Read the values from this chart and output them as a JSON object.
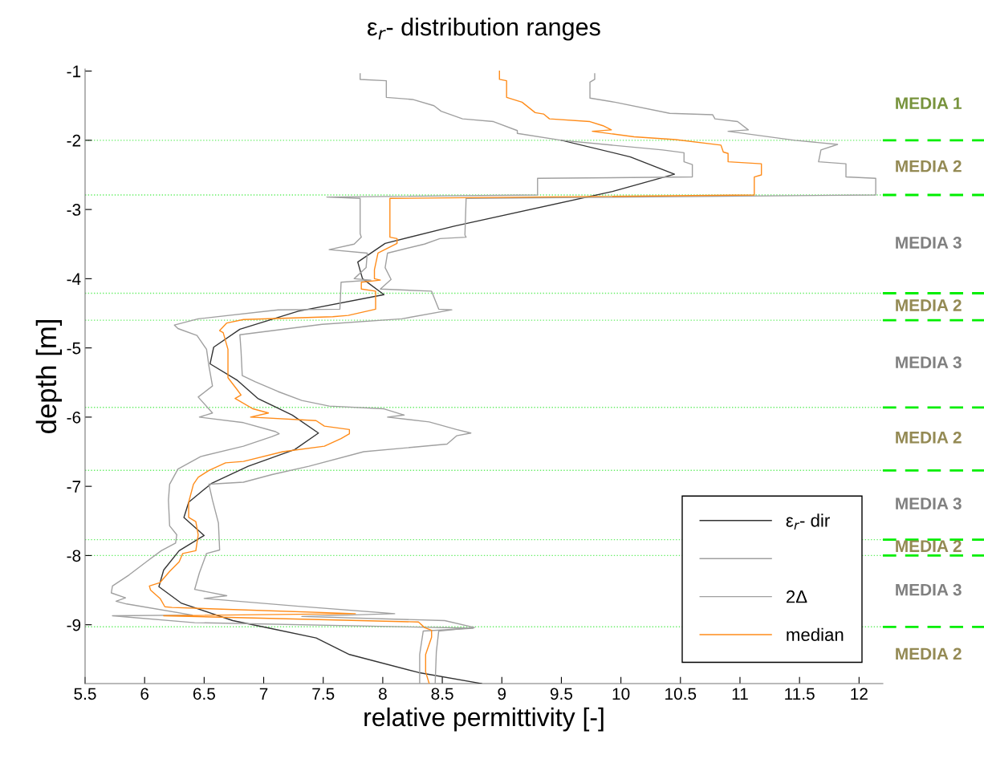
{
  "chart_data": [
    {
      "type": "line",
      "title": "ε$_{r}$- distribution ranges",
      "xlabel": "relative permittivity [-]",
      "ylabel": "depth [m]",
      "xlim": [
        5.5,
        12.2
      ],
      "xticks": [
        5.5,
        6,
        6.5,
        7,
        7.5,
        8,
        8.5,
        9,
        9.5,
        10,
        10.5,
        11,
        11.5,
        12
      ],
      "ylim": [
        -9.85,
        -0.97
      ],
      "yticks": [
        -1,
        -2,
        -3,
        -4,
        -5,
        -6,
        -7,
        -8,
        -9
      ],
      "grid": false,
      "legend": "bottom right",
      "series": [
        {
          "name": "ε$_{r}$- dir",
          "color": "#333333",
          "x": [
            9.5,
            10.08,
            10.45,
            9.93,
            8.6,
            8.02,
            7.79,
            7.83,
            8.01,
            7.29,
            6.8,
            6.58,
            6.55,
            6.78,
            6.95,
            7.24,
            7.46,
            7.26,
            6.87,
            6.56,
            6.37,
            6.33,
            6.5,
            6.29,
            6.16,
            6.12,
            6.31,
            6.74,
            7.05,
            7.44,
            7.72,
            8.3,
            8.83
          ],
          "values": [
            -2.0,
            -2.24,
            -2.49,
            -2.74,
            -3.24,
            -3.49,
            -3.76,
            -4.0,
            -4.23,
            -4.47,
            -4.73,
            -4.99,
            -5.23,
            -5.47,
            -5.73,
            -5.97,
            -6.23,
            -6.47,
            -6.71,
            -6.96,
            -7.23,
            -7.45,
            -7.71,
            -7.93,
            -8.21,
            -8.45,
            -8.69,
            -8.94,
            -9.05,
            -9.19,
            -9.43,
            -9.69,
            -9.85
          ]
        },
        {
          "color": "#a0a0a0",
          "x": [
            7.81,
            7.81,
            8.03,
            8.03,
            8.25,
            8.43,
            8.49,
            8.67,
            8.93,
            9.13,
            9.13,
            9.5,
            10.35,
            10.53,
            10.53,
            10.6,
            10.6,
            9.3,
            9.3,
            7.53,
            7.81,
            7.81,
            7.82,
            7.76,
            7.55,
            7.87,
            7.86,
            7.76,
            7.9,
            7.65,
            7.64,
            7.12,
            6.45,
            6.25,
            6.28,
            6.44,
            6.52,
            6.54,
            6.57,
            6.45,
            6.57,
            6.46,
            6.83,
            7.1,
            7.13,
            7.07,
            6.83,
            6.47,
            6.28,
            6.21,
            6.2,
            6.21,
            6.27,
            6.26,
            6.14,
            6.03,
            5.87,
            5.73,
            5.72,
            5.84,
            5.76,
            5.85,
            6.4,
            5.73,
            6.42,
            8.76,
            8.34,
            8.31,
            8.31
          ],
          "values": [
            -1.04,
            -1.12,
            -1.14,
            -1.38,
            -1.41,
            -1.5,
            -1.58,
            -1.69,
            -1.73,
            -1.86,
            -1.9,
            -2.0,
            -2.14,
            -2.18,
            -2.31,
            -2.35,
            -2.53,
            -2.55,
            -2.79,
            -2.82,
            -2.84,
            -3.35,
            -3.4,
            -3.5,
            -3.58,
            -3.63,
            -3.84,
            -4.0,
            -4.02,
            -4.05,
            -4.44,
            -4.45,
            -4.58,
            -4.67,
            -4.72,
            -4.82,
            -5.02,
            -5.26,
            -5.55,
            -5.71,
            -5.94,
            -6.0,
            -6.08,
            -6.21,
            -6.24,
            -6.28,
            -6.42,
            -6.57,
            -6.75,
            -6.97,
            -7.2,
            -7.57,
            -7.7,
            -7.82,
            -7.93,
            -8.07,
            -8.28,
            -8.44,
            -8.54,
            -8.61,
            -8.66,
            -8.7,
            -8.86,
            -8.87,
            -8.97,
            -9.05,
            -9.09,
            -9.43,
            -9.85
          ]
        },
        {
          "name": "2Δ",
          "color": "#a0a0a0",
          "x": [
            9.78,
            9.78,
            9.74,
            9.74,
            9.95,
            10.41,
            10.77,
            10.79,
            10.98,
            11.07,
            10.9,
            11.46,
            11.82,
            11.68,
            11.66,
            11.89,
            11.89,
            12.14,
            12.14,
            8.7,
            8.69,
            8.7,
            8.48,
            8.35,
            8.04,
            8.02,
            8.07,
            7.98,
            8.41,
            8.47,
            8.58,
            8.16,
            7.49,
            6.8,
            6.81,
            6.82,
            6.93,
            7.12,
            7.32,
            7.55,
            8.01,
            8.18,
            8.04,
            8.39,
            8.62,
            8.74,
            8.62,
            8.54,
            7.84,
            7.38,
            7.07,
            6.83,
            6.54,
            6.57,
            6.62,
            6.63,
            6.52,
            6.46,
            6.42,
            6.69,
            6.5,
            7.27,
            8.1,
            7.32,
            8.52,
            8.77,
            8.47,
            8.45,
            8.44
          ],
          "values": [
            -1.04,
            -1.12,
            -1.16,
            -1.39,
            -1.45,
            -1.61,
            -1.63,
            -1.69,
            -1.73,
            -1.85,
            -1.87,
            -2.0,
            -2.06,
            -2.14,
            -2.31,
            -2.34,
            -2.53,
            -2.55,
            -2.79,
            -2.84,
            -3.37,
            -3.4,
            -3.42,
            -3.5,
            -3.63,
            -3.84,
            -4.01,
            -4.15,
            -4.18,
            -4.44,
            -4.45,
            -4.58,
            -4.66,
            -4.81,
            -5.05,
            -5.4,
            -5.49,
            -5.63,
            -5.76,
            -5.84,
            -5.88,
            -5.97,
            -6.0,
            -6.07,
            -6.18,
            -6.23,
            -6.27,
            -6.39,
            -6.5,
            -6.71,
            -6.83,
            -6.94,
            -6.97,
            -7.2,
            -7.53,
            -7.92,
            -7.97,
            -8.25,
            -8.49,
            -8.58,
            -8.62,
            -8.73,
            -8.84,
            -8.88,
            -8.94,
            -9.04,
            -9.09,
            -9.39,
            -9.85
          ]
        },
        {
          "name": "median",
          "color": "#ff8c1a",
          "x": [
            8.98,
            8.98,
            9.04,
            9.04,
            9.17,
            9.28,
            9.35,
            9.4,
            9.74,
            9.85,
            9.92,
            9.76,
            10.11,
            10.46,
            10.84,
            10.86,
            10.9,
            10.9,
            11.18,
            11.18,
            11.12,
            11.12,
            8.06,
            8.06,
            8.06,
            8.12,
            8.12,
            7.96,
            7.93,
            7.93,
            7.98,
            7.82,
            7.82,
            7.94,
            7.94,
            7.71,
            7.58,
            6.83,
            6.69,
            6.63,
            6.66,
            6.7,
            6.7,
            6.78,
            6.81,
            6.76,
            6.91,
            7.04,
            6.89,
            7.44,
            7.51,
            7.72,
            7.72,
            7.65,
            7.51,
            7.16,
            6.83,
            6.68,
            6.54,
            6.45,
            6.41,
            6.37,
            6.37,
            6.43,
            6.45,
            6.43,
            6.32,
            6.29,
            6.21,
            6.13,
            6.04,
            6.05,
            6.13,
            6.17,
            6.23,
            7.77,
            6.16,
            8.3,
            8.35,
            8.41,
            8.41,
            8.36,
            8.36,
            8.39
          ],
          "values": [
            -1.0,
            -1.12,
            -1.14,
            -1.38,
            -1.45,
            -1.6,
            -1.62,
            -1.69,
            -1.73,
            -1.79,
            -1.85,
            -1.87,
            -1.95,
            -1.99,
            -2.07,
            -2.17,
            -2.19,
            -2.31,
            -2.34,
            -2.5,
            -2.53,
            -2.79,
            -2.84,
            -3.35,
            -3.4,
            -3.42,
            -3.49,
            -3.63,
            -3.87,
            -4.0,
            -4.02,
            -4.05,
            -4.15,
            -4.18,
            -4.44,
            -4.53,
            -4.55,
            -4.59,
            -4.64,
            -4.75,
            -4.78,
            -5.02,
            -5.43,
            -5.61,
            -5.68,
            -5.73,
            -5.88,
            -5.94,
            -6.0,
            -6.05,
            -6.13,
            -6.18,
            -6.24,
            -6.31,
            -6.42,
            -6.5,
            -6.64,
            -6.66,
            -6.77,
            -6.87,
            -6.97,
            -7.23,
            -7.45,
            -7.51,
            -7.7,
            -7.93,
            -7.97,
            -8.09,
            -8.23,
            -8.39,
            -8.44,
            -8.5,
            -8.62,
            -8.74,
            -8.75,
            -8.84,
            -8.87,
            -8.96,
            -9.04,
            -9.08,
            -9.18,
            -9.43,
            -9.68,
            -9.85
          ]
        }
      ],
      "ref_lines": [
        {
          "axis": "y",
          "value": -2.0,
          "color": "#66ee66",
          "line_style": "dotted"
        },
        {
          "axis": "y",
          "value": -2.79,
          "color": "#66ee66",
          "line_style": "dotted"
        },
        {
          "axis": "y",
          "value": -4.21,
          "color": "#66ee66",
          "line_style": "dotted"
        },
        {
          "axis": "y",
          "value": -4.6,
          "color": "#66ee66",
          "line_style": "dotted"
        },
        {
          "axis": "y",
          "value": -5.86,
          "color": "#66ee66",
          "line_style": "dotted"
        },
        {
          "axis": "y",
          "value": -6.77,
          "color": "#66ee66",
          "line_style": "dotted"
        },
        {
          "axis": "y",
          "value": -7.77,
          "color": "#66ee66",
          "line_style": "dotted"
        },
        {
          "axis": "y",
          "value": -8.0,
          "color": "#66ee66",
          "line_style": "dotted"
        },
        {
          "axis": "y",
          "value": -9.03,
          "color": "#66ee66",
          "line_style": "dotted"
        }
      ]
    },
    {
      "type": "other",
      "annotations": [
        "MEDIA 1",
        "MEDIA 2",
        "MEDIA 3",
        "MEDIA 2",
        "MEDIA 3",
        "MEDIA 2",
        "MEDIA 3",
        "MEDIA 2",
        "MEDIA 3",
        "MEDIA 2"
      ],
      "colors": [
        "#77933c",
        "#948a54",
        "#808080",
        "#948a54",
        "#808080",
        "#948a54",
        "#808080",
        "#948a54",
        "#808080",
        "#948a54"
      ]
    }
  ]
}
